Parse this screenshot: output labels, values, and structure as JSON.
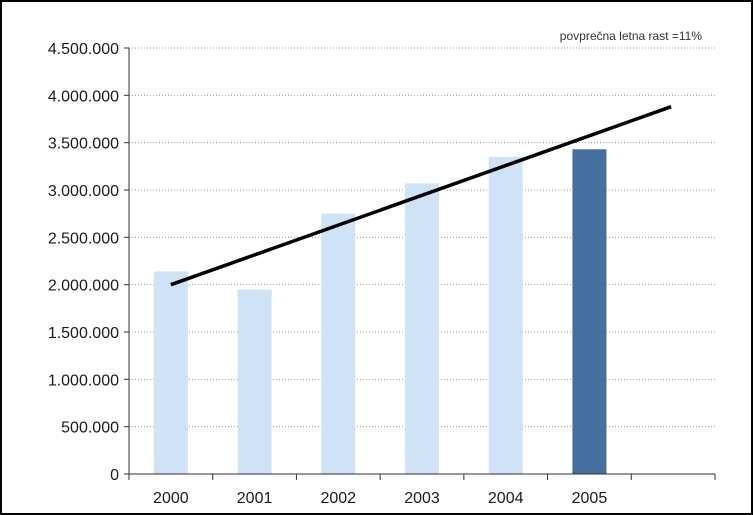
{
  "chart_data": {
    "type": "bar",
    "title": "",
    "xlabel": "",
    "ylabel": "",
    "categories": [
      "2000",
      "2001",
      "2002",
      "2003",
      "2004",
      "2005"
    ],
    "values": [
      2140000,
      1950000,
      2750000,
      3070000,
      3350000,
      3430000
    ],
    "ylim": [
      0,
      4500000
    ],
    "yticks": [
      0,
      500000,
      1000000,
      1500000,
      2000000,
      2500000,
      3000000,
      3500000,
      4000000,
      4500000
    ],
    "ytick_labels": [
      "0",
      "500.000",
      "1.000.000",
      "1.500.000",
      "2.000.000",
      "2.500.000",
      "3.000.000",
      "3.500.000",
      "4.000.000",
      "4.500.000"
    ],
    "trendline": {
      "x_start": 0,
      "y_start": 2000000,
      "x_end": 6,
      "y_end": 3880000
    },
    "annotation": "povprečna letna rast =11%",
    "grid": "horizontal-dotted",
    "colors": {
      "bar": "#cfe2f6",
      "bar_highlight": "#446f9e",
      "trend": "#000000",
      "grid": "#999999"
    },
    "highlight_index": 5
  }
}
